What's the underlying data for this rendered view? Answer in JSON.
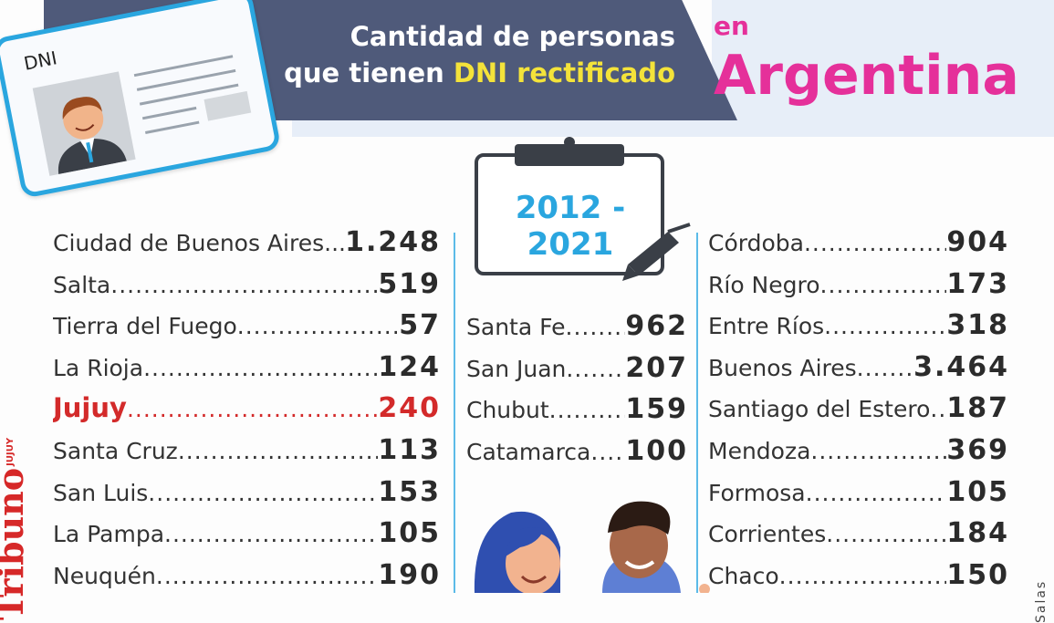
{
  "header": {
    "title_line1": "Cantidad de personas",
    "title_line2_prefix": "que tienen ",
    "title_line2_highlight": "DNI rectificado",
    "location_prefix": "en",
    "location": "Argentina"
  },
  "id_card": {
    "label": "DNI",
    "icon": "id-card-icon"
  },
  "period": "2012 - 2021",
  "columns": {
    "left": [
      {
        "name": "Ciudad de Buenos Aires..",
        "value": "1.248"
      },
      {
        "name": "Salta",
        "value": "519"
      },
      {
        "name": "Tierra del Fuego",
        "value": "57"
      },
      {
        "name": "La Rioja",
        "value": "124"
      },
      {
        "name": "Jujuy",
        "value": "240"
      },
      {
        "name": "Santa Cruz",
        "value": "113"
      },
      {
        "name": "San Luis",
        "value": "153"
      },
      {
        "name": "La Pampa",
        "value": "105"
      },
      {
        "name": "Neuquén",
        "value": "190"
      }
    ],
    "middle": [
      {
        "name": "Santa Fe",
        "value": "962"
      },
      {
        "name": "San Juan",
        "value": "207"
      },
      {
        "name": "Chubut",
        "value": "159"
      },
      {
        "name": "Catamarca",
        "value": "100"
      }
    ],
    "right": [
      {
        "name": "Córdoba",
        "value": "904"
      },
      {
        "name": "Río Negro",
        "value": "173"
      },
      {
        "name": "Entre Ríos",
        "value": "318"
      },
      {
        "name": "Buenos Aires",
        "value": "3.464"
      },
      {
        "name": "Santiago del Estero",
        "value": "187"
      },
      {
        "name": "Mendoza",
        "value": "369"
      },
      {
        "name": "Formosa",
        "value": "105"
      },
      {
        "name": "Corrientes",
        "value": "184"
      },
      {
        "name": "Chaco",
        "value": "150"
      }
    ]
  },
  "highlight_row": "Jujuy",
  "branding": {
    "logo_text": "Tribuno",
    "logo_small": "JUJUY"
  },
  "credit": "Salas",
  "colors": {
    "banner": "#4f5a7a",
    "highlight_text": "#f4e33a",
    "accent_pink": "#e5309a",
    "accent_blue": "#2aa6df",
    "jujuy_red": "#d32a2a"
  }
}
